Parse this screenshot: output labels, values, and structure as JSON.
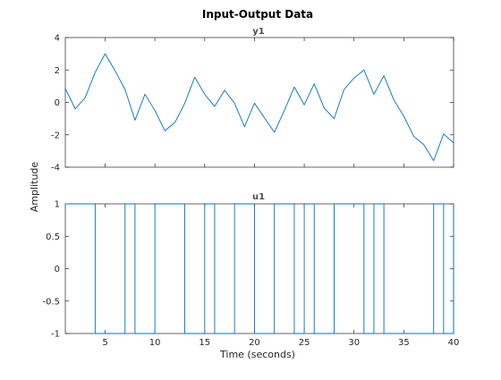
{
  "chart_data": {
    "type": "line",
    "title": "Input-Output Data",
    "xlabel": "Time (seconds)",
    "ylabel": "Amplitude",
    "grid": false,
    "series_color": "#0072bd",
    "axes_color": "#262626",
    "xlim": [
      1,
      40
    ],
    "xticks": [
      5,
      10,
      15,
      20,
      25,
      30,
      35,
      40
    ],
    "panels": [
      {
        "name": "y1",
        "type": "line",
        "ylim": [
          -4,
          4
        ],
        "yticks": [
          -4,
          -2,
          0,
          2,
          4
        ],
        "ytick_labels": [
          "-4",
          "-2",
          "0",
          "2",
          "4"
        ],
        "x": [
          1,
          2,
          3,
          4,
          5,
          6,
          7,
          8,
          9,
          10,
          11,
          12,
          13,
          14,
          15,
          16,
          17,
          18,
          19,
          20,
          21,
          22,
          23,
          24,
          25,
          26,
          27,
          28,
          29,
          30,
          31,
          32,
          33,
          34,
          35,
          36,
          37,
          38,
          39,
          40
        ],
        "y": [
          0.85,
          -0.4,
          0.3,
          1.85,
          3.0,
          1.95,
          0.8,
          -1.1,
          0.5,
          -0.5,
          -1.75,
          -1.25,
          -0.05,
          1.55,
          0.5,
          -0.25,
          0.75,
          -0.05,
          -1.5,
          -0.05,
          -0.95,
          -1.85,
          -0.5,
          0.95,
          -0.15,
          1.15,
          -0.35,
          -1.0,
          0.8,
          1.5,
          2.0,
          0.5,
          1.65,
          0.15,
          -0.85,
          -2.1,
          -2.6,
          -3.6,
          -1.95,
          -2.5
        ]
      },
      {
        "name": "u1",
        "type": "stairs",
        "ylim": [
          -1,
          1
        ],
        "yticks": [
          -1,
          -0.5,
          0,
          0.5,
          1
        ],
        "ytick_labels": [
          "-1",
          "-0.5",
          "0",
          "0.5",
          "1"
        ],
        "x": [
          1,
          4,
          7,
          8,
          10,
          13,
          15,
          16,
          18,
          20,
          22,
          24,
          25,
          26,
          28,
          31,
          32,
          33,
          38,
          39,
          40
        ],
        "y": [
          1,
          -1,
          1,
          -1,
          1,
          -1,
          1,
          -1,
          1,
          -1,
          1,
          -1,
          1,
          -1,
          1,
          -1,
          1,
          -1,
          1,
          -1,
          1
        ]
      }
    ]
  }
}
